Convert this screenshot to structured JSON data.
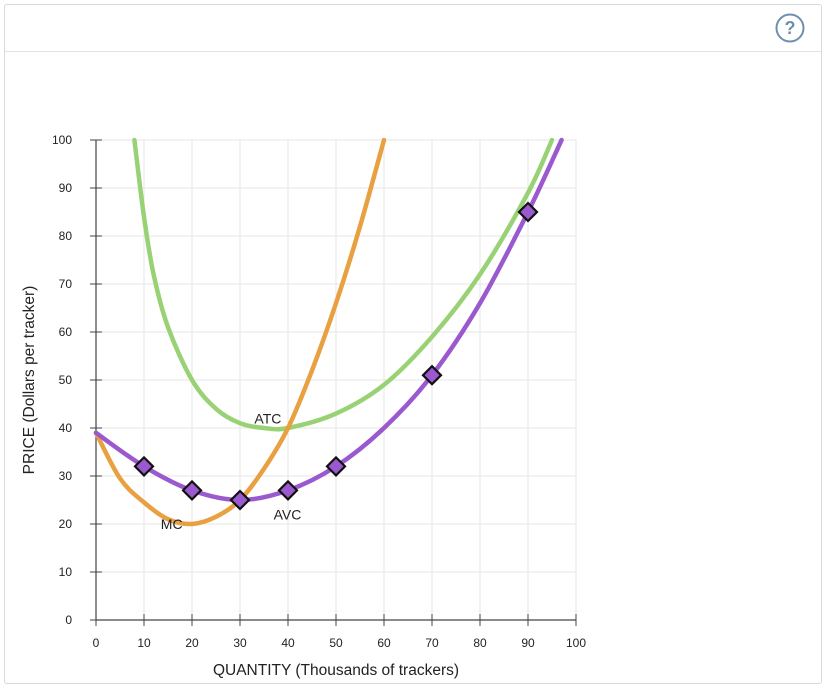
{
  "header": {
    "help_label": "?"
  },
  "colors": {
    "mc": "#E8A040",
    "atc": "#99D175",
    "avc": "#9B59D0",
    "grid": "#e6e6e6",
    "axis": "#444444",
    "help": "#6f8fb0"
  },
  "chart_data": {
    "type": "line",
    "xlabel": "QUANTITY (Thousands of trackers)",
    "ylabel": "PRICE (Dollars per tracker)",
    "xlim": [
      0,
      100
    ],
    "ylim": [
      0,
      100
    ],
    "xticks": [
      "0",
      "10",
      "20",
      "30",
      "40",
      "50",
      "60",
      "70",
      "80",
      "90",
      "100"
    ],
    "yticks": [
      "0",
      "10",
      "20",
      "30",
      "40",
      "50",
      "60",
      "70",
      "80",
      "90",
      "100"
    ],
    "grid": true,
    "series": [
      {
        "name": "MC",
        "x": [
          0,
          5,
          10,
          15,
          20,
          25,
          30,
          35,
          40,
          45,
          50,
          55,
          60
        ],
        "y": [
          39,
          29.5,
          24.5,
          21,
          20,
          21.5,
          25,
          31.5,
          40,
          52,
          66,
          82,
          100
        ]
      },
      {
        "name": "ATC",
        "x": [
          8,
          10,
          12,
          15,
          20,
          25,
          30,
          35,
          40,
          50,
          60,
          70,
          80,
          90,
          95
        ],
        "y": [
          100,
          84,
          72,
          61,
          50,
          44,
          41,
          40,
          40,
          43,
          49,
          59,
          72,
          89,
          100
        ]
      },
      {
        "name": "AVC",
        "x": [
          0,
          10,
          20,
          30,
          40,
          50,
          60,
          70,
          80,
          90,
          97
        ],
        "y": [
          39,
          32,
          27,
          25,
          27,
          32,
          40,
          51,
          66,
          85,
          100
        ]
      }
    ],
    "markers": {
      "series": "AVC",
      "x": [
        10,
        20,
        30,
        40,
        50,
        70,
        90
      ],
      "y": [
        32,
        27,
        25,
        27,
        32,
        51,
        85
      ]
    },
    "labels": [
      {
        "text": "MC",
        "x": 13.5,
        "y": 20
      },
      {
        "text": "ATC",
        "x": 33,
        "y": 42
      },
      {
        "text": "AVC",
        "x": 37,
        "y": 22
      }
    ]
  }
}
